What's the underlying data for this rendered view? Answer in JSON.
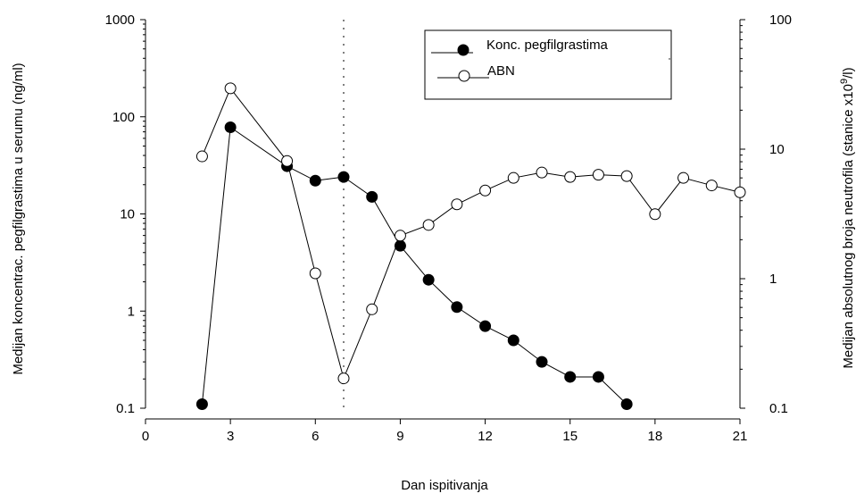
{
  "chart_data": {
    "type": "line",
    "xlabel": "Dan ispitivanja",
    "ylabel_left": "Medijan koncentrac. pegfilgrastima u serumu (ng/ml)",
    "ylabel_right_parts": [
      "Medijan absolutnog broja neutrofila (stanice x10",
      "9",
      "/l)"
    ],
    "x_ticks": [
      0,
      3,
      6,
      9,
      12,
      15,
      18,
      21
    ],
    "x_tick_labels": [
      "0",
      "3",
      "6",
      "9",
      "12",
      "15",
      "18",
      "21"
    ],
    "xlim": [
      0,
      21
    ],
    "y_left": {
      "scale": "log",
      "lim": [
        0.1,
        1000
      ],
      "ticks": [
        0.1,
        1,
        10,
        100,
        1000
      ],
      "tick_labels": [
        "0.1",
        "1",
        "10",
        "100",
        "1000"
      ]
    },
    "y_right": {
      "scale": "log",
      "lim": [
        0.1,
        100
      ],
      "ticks": [
        0.1,
        1,
        10,
        100
      ],
      "tick_labels": [
        "0.1",
        "1",
        "10",
        "100"
      ]
    },
    "vertical_reference_line_x": 7,
    "series": [
      {
        "name": "Konc. pegfilgrastima",
        "axis": "left",
        "marker": "filled-circle",
        "color": "#000000",
        "x": [
          2,
          3,
          5,
          6,
          7,
          8,
          9,
          10,
          11,
          12,
          13,
          14,
          15,
          16,
          17
        ],
        "values": [
          0.11,
          78,
          31,
          22,
          24,
          15,
          4.7,
          2.1,
          1.1,
          0.7,
          0.5,
          0.3,
          0.21,
          0.21,
          0.11
        ]
      },
      {
        "name": "ABN",
        "axis": "right",
        "marker": "open-circle",
        "color": "#000000",
        "x": [
          2,
          3,
          5,
          6,
          7,
          8,
          9,
          10,
          11,
          12,
          13,
          14,
          15,
          16,
          17,
          18,
          19,
          20,
          21
        ],
        "values": [
          8.8,
          29.5,
          8.1,
          1.1,
          0.17,
          0.58,
          2.15,
          2.6,
          3.75,
          4.8,
          6.0,
          6.6,
          6.1,
          6.35,
          6.2,
          3.15,
          6.0,
          5.25,
          4.65
        ]
      }
    ],
    "legend": {
      "position": "top-right"
    }
  }
}
